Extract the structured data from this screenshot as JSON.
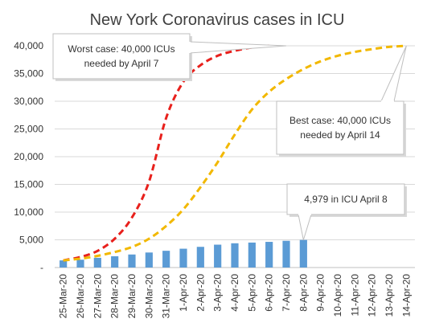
{
  "chart_data": {
    "type": "bar",
    "title": "New York Coronavirus cases in ICU",
    "categories": [
      "25-Mar-20",
      "26-Mar-20",
      "27-Mar-20",
      "28-Mar-20",
      "29-Mar-20",
      "30-Mar-20",
      "31-Mar-20",
      "1-Apr-20",
      "2-Apr-20",
      "3-Apr-20",
      "4-Apr-20",
      "5-Apr-20",
      "6-Apr-20",
      "7-Apr-20",
      "8-Apr-20",
      "9-Apr-20",
      "10-Apr-20",
      "11-Apr-20",
      "12-Apr-20",
      "13-Apr-20",
      "14-Apr-20"
    ],
    "yticks": [
      "-",
      "5,000",
      "10,000",
      "15,000",
      "20,000",
      "25,000",
      "30,000",
      "35,000",
      "40,000"
    ],
    "ylim": [
      0,
      40000
    ],
    "grid": true,
    "series": [
      {
        "kind": "bar",
        "color": "#5b9bd5",
        "values": [
          1290,
          1412,
          1755,
          2037,
          2352,
          2710,
          3022,
          3396,
          3731,
          4126,
          4376,
          4504,
          4632,
          4820,
          4979,
          null,
          null,
          null,
          null,
          null,
          null
        ]
      },
      {
        "kind": "dashed-line",
        "color": "#e8201c",
        "values": [
          1290,
          1900,
          3000,
          5200,
          9000,
          15500,
          27000,
          33500,
          36500,
          38200,
          39100,
          39700,
          40000,
          null,
          null,
          null,
          null,
          null,
          null,
          null,
          null
        ]
      },
      {
        "kind": "dashed-line",
        "color": "#f2b800",
        "values": [
          1290,
          1600,
          2100,
          2800,
          3700,
          5200,
          7500,
          10500,
          14500,
          19000,
          24000,
          28500,
          31700,
          34000,
          35800,
          37200,
          38200,
          38900,
          39400,
          39800,
          40000
        ]
      }
    ],
    "annotations": [
      {
        "lines": [
          "Worst case: 40,000  ICUs",
          "needed by April 7"
        ]
      },
      {
        "lines": [
          "Best case: 40,000  ICUs",
          "needed by April 14"
        ]
      },
      {
        "lines": [
          "4,979  in ICU April 8"
        ]
      }
    ]
  }
}
